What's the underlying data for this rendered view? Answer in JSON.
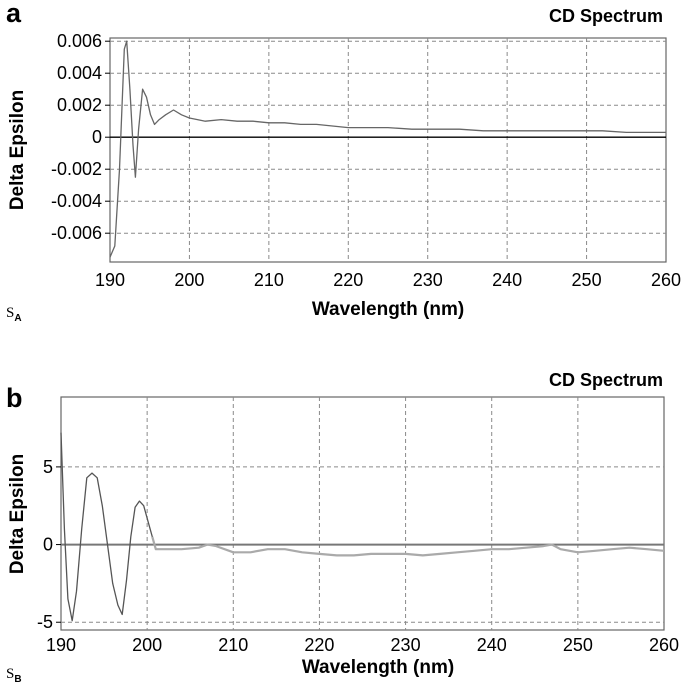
{
  "panels": [
    {
      "letter": "a",
      "sample_prefix": "S",
      "sample_sub": "A"
    },
    {
      "letter": "b",
      "sample_prefix": "S",
      "sample_sub": "B"
    }
  ],
  "chart_data": [
    {
      "type": "line",
      "title": "CD Spectrum",
      "xlabel": "Wavelength (nm)",
      "ylabel": "Delta Epsilon",
      "xlim": [
        190,
        260
      ],
      "ylim": [
        -0.0078,
        0.0062
      ],
      "x_ticks": [
        190,
        200,
        210,
        220,
        230,
        240,
        250,
        260
      ],
      "y_ticks": [
        -0.006,
        -0.004,
        -0.002,
        0,
        0.002,
        0.004,
        0.006
      ],
      "y_tick_labels": [
        "-0.006",
        "-0.004",
        "-0.002",
        "0",
        "0.002",
        "0.004",
        "0.006"
      ],
      "x_tick_labels": [
        "190",
        "200",
        "210",
        "220",
        "230",
        "240",
        "250",
        "260"
      ],
      "grid": true,
      "series_color": "#666666",
      "series": [
        {
          "x": [
            190,
            190.6,
            191.2,
            191.8,
            192.1,
            192.5,
            192.9,
            193.2,
            193.6,
            194.1,
            194.6,
            195.1,
            195.6,
            196.2,
            197.0,
            198.0,
            199.0,
            200.0,
            201.0,
            202.0,
            204.0,
            206.0,
            208.0,
            210.0,
            212.0,
            214.0,
            216.0,
            218.0,
            220.0,
            222.0,
            225.0,
            228.0,
            231.0,
            234.0,
            237.0,
            240.0,
            243.0,
            246.0,
            249.0,
            252.0,
            255.0,
            258.0,
            260.0
          ],
          "y": [
            -0.0075,
            -0.0068,
            -0.002,
            0.0055,
            0.006,
            0.003,
            -0.0005,
            -0.0025,
            0.0005,
            0.003,
            0.0025,
            0.0014,
            0.0008,
            0.0011,
            0.0014,
            0.0017,
            0.0014,
            0.0012,
            0.0011,
            0.001,
            0.0011,
            0.001,
            0.001,
            0.0009,
            0.0009,
            0.0008,
            0.0008,
            0.0007,
            0.0006,
            0.0006,
            0.0006,
            0.0005,
            0.0005,
            0.0005,
            0.0004,
            0.0004,
            0.0004,
            0.0004,
            0.0004,
            0.0004,
            0.0003,
            0.0003,
            0.0003
          ]
        }
      ]
    },
    {
      "type": "line",
      "title": "CD Spectrum",
      "xlabel": "Wavelength (nm)",
      "ylabel": "Delta Epsilon",
      "xlim": [
        190,
        260
      ],
      "ylim": [
        -5.5,
        9.5
      ],
      "x_ticks": [
        190,
        200,
        210,
        220,
        230,
        240,
        250,
        260
      ],
      "y_ticks": [
        -5,
        0,
        5
      ],
      "y_tick_labels": [
        "-5",
        "0",
        "5"
      ],
      "x_tick_labels": [
        "190",
        "200",
        "210",
        "220",
        "230",
        "240",
        "250",
        "260"
      ],
      "grid": true,
      "series_color": "#555555",
      "series_color_tail": "#aaaaaa",
      "series": [
        {
          "x": [
            190,
            190.4,
            190.8,
            191.3,
            191.8,
            192.4,
            193.0,
            193.6,
            194.2,
            194.8,
            195.4,
            196.0,
            196.6,
            197.1,
            197.6,
            198.1,
            198.6,
            199.1,
            199.6,
            200.1,
            200.6,
            201.0,
            202.0,
            204.0,
            206.0,
            207.0,
            208.0,
            210.0,
            212.0,
            214.0,
            216.0,
            218.0,
            220.0,
            222.0,
            224.0,
            226.0,
            228.0,
            230.0,
            232.0,
            234.0,
            236.0,
            238.0,
            240.0,
            242.0,
            244.0,
            246.0,
            247.0,
            248.0,
            250.0,
            252.0,
            254.0,
            256.0,
            258.0,
            260.0
          ],
          "y": [
            7.2,
            1.0,
            -3.5,
            -4.9,
            -3.0,
            1.0,
            4.3,
            4.6,
            4.3,
            2.5,
            0.0,
            -2.5,
            -3.9,
            -4.5,
            -2.3,
            0.5,
            2.4,
            2.8,
            2.5,
            1.5,
            0.5,
            -0.3,
            -0.3,
            -0.3,
            -0.2,
            0.0,
            -0.1,
            -0.5,
            -0.5,
            -0.3,
            -0.3,
            -0.5,
            -0.6,
            -0.7,
            -0.7,
            -0.6,
            -0.6,
            -0.6,
            -0.7,
            -0.6,
            -0.5,
            -0.4,
            -0.3,
            -0.3,
            -0.2,
            -0.1,
            0.0,
            -0.3,
            -0.5,
            -0.4,
            -0.3,
            -0.2,
            -0.3,
            -0.4
          ]
        }
      ]
    }
  ]
}
